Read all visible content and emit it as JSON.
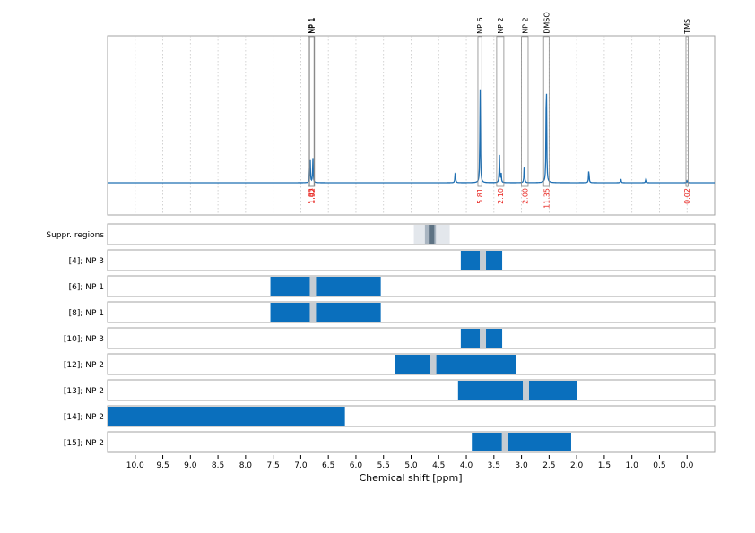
{
  "chart_data": {
    "type": "line",
    "xlabel": "Chemical shift [ppm]",
    "x_axis": {
      "range": [
        10.5,
        -0.5
      ],
      "reversed": true,
      "ticks": [
        10.0,
        9.5,
        9.0,
        8.5,
        8.0,
        7.5,
        7.0,
        6.5,
        6.0,
        5.5,
        5.0,
        4.5,
        4.0,
        3.5,
        3.0,
        2.5,
        2.0,
        1.5,
        1.0,
        0.5,
        0.0
      ],
      "tick_labels": [
        "10.0",
        "9.5",
        "9.0",
        "8.5",
        "8.0",
        "7.5",
        "7.0",
        "6.5",
        "6.0",
        "5.5",
        "5.0",
        "4.5",
        "4.0",
        "3.5",
        "3.0",
        "2.5",
        "2.0",
        "1.5",
        "1.0",
        "0.5",
        "0.0"
      ],
      "vertical_grid": "dotted"
    },
    "spectrum": {
      "color": "#1f6fb2",
      "peaks": [
        {
          "ppm": 6.83,
          "height": 0.18
        },
        {
          "ppm": 6.78,
          "height": 0.18
        },
        {
          "ppm": 4.2,
          "height": 0.09
        },
        {
          "ppm": 3.75,
          "height": 0.7
        },
        {
          "ppm": 3.4,
          "height": 0.2
        },
        {
          "ppm": 3.37,
          "height": 0.08
        },
        {
          "ppm": 2.95,
          "height": 0.14
        },
        {
          "ppm": 2.55,
          "height": 0.86
        },
        {
          "ppm": 1.78,
          "height": 0.1
        },
        {
          "ppm": 1.2,
          "height": 0.03
        },
        {
          "ppm": 0.75,
          "height": 0.02
        },
        {
          "ppm": 0.0,
          "height": 0.02
        }
      ]
    },
    "annotations": [
      {
        "label": "NP 1",
        "ppm_from": 6.86,
        "ppm_to": 6.76,
        "integral": "1.83",
        "top": 0.95
      },
      {
        "label": "NP 1",
        "ppm_from": 6.84,
        "ppm_to": 6.75,
        "integral": "1.92",
        "top": 0.95
      },
      {
        "label": "NP 6",
        "ppm_from": 3.79,
        "ppm_to": 3.72,
        "integral": "5.81",
        "top": 0.95
      },
      {
        "label": "NP 2",
        "ppm_from": 3.45,
        "ppm_to": 3.32,
        "integral": "2.10",
        "top": 0.95
      },
      {
        "label": "NP 2",
        "ppm_from": 3.0,
        "ppm_to": 2.88,
        "integral": "2.00",
        "top": 0.95
      },
      {
        "label": "DMSO",
        "ppm_from": 2.6,
        "ppm_to": 2.5,
        "integral": "11.35",
        "top": 0.95
      },
      {
        "label": "TMS",
        "ppm_from": 0.02,
        "ppm_to": -0.02,
        "integral": "0.02",
        "top": 0.95
      }
    ],
    "integral_color": "#e8231e",
    "regions": [
      {
        "label": "Suppr. regions",
        "kind": "suppression",
        "outer": [
          4.95,
          4.3
        ],
        "mid": [
          4.75,
          4.55
        ],
        "inner": [
          4.68,
          4.58
        ]
      },
      {
        "label": "[4]; NP 3",
        "blocks": [
          [
            4.1,
            3.35
          ]
        ],
        "markers": [
          3.7
        ]
      },
      {
        "label": "[6]; NP 1",
        "blocks": [
          [
            7.55,
            5.55
          ]
        ],
        "markers": [
          6.78
        ]
      },
      {
        "label": "[8]; NP 1",
        "blocks": [
          [
            7.55,
            5.55
          ]
        ],
        "markers": [
          6.78
        ]
      },
      {
        "label": "[10]; NP 3",
        "blocks": [
          [
            4.1,
            3.35
          ]
        ],
        "markers": [
          3.7
        ]
      },
      {
        "label": "[12]; NP 2",
        "blocks": [
          [
            5.3,
            3.1
          ]
        ],
        "markers": [
          4.6
        ]
      },
      {
        "label": "[13]; NP 2",
        "blocks": [
          [
            4.15,
            2.0
          ]
        ],
        "markers": [
          2.92
        ]
      },
      {
        "label": "[14]; NP 2",
        "blocks": [
          [
            10.5,
            6.2
          ]
        ],
        "markers": []
      },
      {
        "label": "[15]; NP 2",
        "blocks": [
          [
            3.9,
            2.1
          ]
        ],
        "markers": [
          3.3
        ]
      }
    ],
    "colors": {
      "block": "#0a6fbd",
      "marker": "#c6ccd2",
      "suppr_outer": "#e3e7ec",
      "suppr_mid": "#a9b5c1",
      "suppr_inner": "#5d7283",
      "frame": "#a3a3a3",
      "grid": "#c8c8c8",
      "marker_box": "#8a8a8a"
    }
  }
}
